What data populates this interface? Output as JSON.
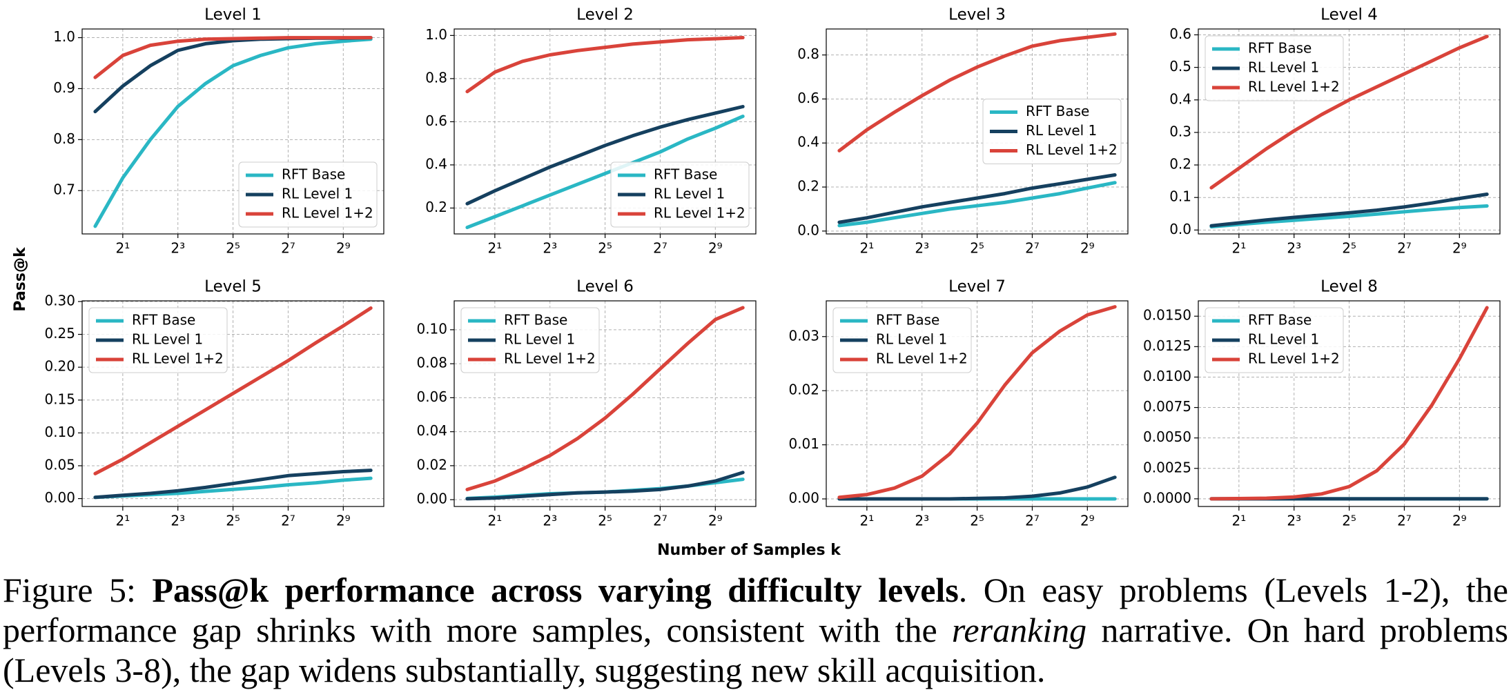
{
  "figure": {
    "ylabel": "Pass@k",
    "xlabel": "Number of Samples k"
  },
  "caption": {
    "label": "Figure 5:",
    "bold": "Pass@k performance across varying difficulty levels",
    "text1": ". On easy problems (Levels 1-2), the performance gap shrinks with more samples, consistent with the ",
    "italic": "reranking",
    "text2": " narrative. On hard problems (Levels 3-8), the gap widens substantially, suggesting new skill acquisition."
  },
  "chart_data": [
    {
      "type": "line",
      "title": "Level 1",
      "x": [
        1,
        2,
        4,
        8,
        16,
        32,
        64,
        128,
        256,
        512,
        1024
      ],
      "xscale": "log2",
      "xlim": [
        0.72,
        1418
      ],
      "xticks": [
        {
          "value": 2,
          "label": "2¹"
        },
        {
          "value": 8,
          "label": "2³"
        },
        {
          "value": 32,
          "label": "2⁵"
        },
        {
          "value": 128,
          "label": "2⁷"
        },
        {
          "value": 512,
          "label": "2⁹"
        }
      ],
      "ylim": [
        0.615,
        1.017
      ],
      "yticks": [
        0.7,
        0.8,
        0.9,
        {
          "value": 1.0,
          "label": "1.0"
        }
      ],
      "grid": true,
      "legend": "lower right",
      "series": [
        {
          "name": "RFT Base",
          "color": "#2ab7c4",
          "values": [
            0.63,
            0.725,
            0.8,
            0.865,
            0.91,
            0.945,
            0.965,
            0.98,
            0.988,
            0.993,
            0.997
          ]
        },
        {
          "name": "RL Level 1",
          "color": "#15405f",
          "values": [
            0.855,
            0.905,
            0.945,
            0.975,
            0.988,
            0.994,
            0.997,
            0.998,
            0.999,
            0.999,
            1.0
          ]
        },
        {
          "name": "RL Level 1+2",
          "color": "#d9433a",
          "values": [
            0.922,
            0.965,
            0.985,
            0.993,
            0.997,
            0.998,
            0.999,
            1.0,
            1.0,
            1.0,
            1.0
          ]
        }
      ]
    },
    {
      "type": "line",
      "title": "Level 2",
      "x": [
        1,
        2,
        4,
        8,
        16,
        32,
        64,
        128,
        256,
        512,
        1024
      ],
      "xscale": "log2",
      "xlim": [
        0.72,
        1418
      ],
      "xticks": [
        {
          "value": 2,
          "label": "2¹"
        },
        {
          "value": 8,
          "label": "2³"
        },
        {
          "value": 32,
          "label": "2⁵"
        },
        {
          "value": 128,
          "label": "2⁷"
        },
        {
          "value": 512,
          "label": "2⁹"
        }
      ],
      "ylim": [
        0.08,
        1.03
      ],
      "yticks": [
        0.2,
        0.4,
        0.6,
        0.8,
        {
          "value": 1.0,
          "label": "1.0"
        }
      ],
      "grid": true,
      "legend": "lower right",
      "series": [
        {
          "name": "RFT Base",
          "color": "#2ab7c4",
          "values": [
            0.11,
            0.16,
            0.21,
            0.26,
            0.31,
            0.36,
            0.41,
            0.46,
            0.52,
            0.57,
            0.625
          ]
        },
        {
          "name": "RL Level 1",
          "color": "#15405f",
          "values": [
            0.22,
            0.28,
            0.335,
            0.39,
            0.44,
            0.49,
            0.535,
            0.575,
            0.61,
            0.64,
            0.67
          ]
        },
        {
          "name": "RL Level 1+2",
          "color": "#d9433a",
          "values": [
            0.74,
            0.83,
            0.88,
            0.91,
            0.93,
            0.945,
            0.96,
            0.97,
            0.98,
            0.985,
            0.99
          ]
        }
      ]
    },
    {
      "type": "line",
      "title": "Level 3",
      "x": [
        1,
        2,
        4,
        8,
        16,
        32,
        64,
        128,
        256,
        512,
        1024
      ],
      "xscale": "log2",
      "xlim": [
        0.72,
        1418
      ],
      "xticks": [
        {
          "value": 2,
          "label": "2¹"
        },
        {
          "value": 8,
          "label": "2³"
        },
        {
          "value": 32,
          "label": "2⁵"
        },
        {
          "value": 128,
          "label": "2⁷"
        },
        {
          "value": 512,
          "label": "2⁹"
        }
      ],
      "ylim": [
        -0.013,
        0.918
      ],
      "yticks": [
        {
          "value": 0,
          "label": "0.0"
        },
        0.2,
        0.4,
        0.6,
        0.8
      ],
      "grid": true,
      "legend": "center right",
      "series": [
        {
          "name": "RFT Base",
          "color": "#2ab7c4",
          "values": [
            0.025,
            0.04,
            0.06,
            0.08,
            0.1,
            0.115,
            0.13,
            0.15,
            0.17,
            0.195,
            0.22
          ]
        },
        {
          "name": "RL Level 1",
          "color": "#15405f",
          "values": [
            0.04,
            0.06,
            0.085,
            0.11,
            0.13,
            0.15,
            0.17,
            0.195,
            0.215,
            0.235,
            0.255
          ]
        },
        {
          "name": "RL Level 1+2",
          "color": "#d9433a",
          "values": [
            0.365,
            0.46,
            0.54,
            0.615,
            0.685,
            0.745,
            0.795,
            0.84,
            0.865,
            0.88,
            0.895
          ]
        }
      ]
    },
    {
      "type": "line",
      "title": "Level 4",
      "x": [
        1,
        2,
        4,
        8,
        16,
        32,
        64,
        128,
        256,
        512,
        1024
      ],
      "xscale": "log2",
      "xlim": [
        0.72,
        1418
      ],
      "xticks": [
        {
          "value": 2,
          "label": "2¹"
        },
        {
          "value": 8,
          "label": "2³"
        },
        {
          "value": 32,
          "label": "2⁵"
        },
        {
          "value": 128,
          "label": "2⁷"
        },
        {
          "value": 512,
          "label": "2⁹"
        }
      ],
      "ylim": [
        -0.012,
        0.618
      ],
      "yticks": [
        {
          "value": 0,
          "label": "0.0"
        },
        0.1,
        0.2,
        0.3,
        0.4,
        0.5,
        0.6
      ],
      "grid": true,
      "legend": "upper left",
      "series": [
        {
          "name": "RFT Base",
          "color": "#2ab7c4",
          "values": [
            0.01,
            0.017,
            0.024,
            0.03,
            0.036,
            0.042,
            0.049,
            0.056,
            0.063,
            0.069,
            0.074
          ]
        },
        {
          "name": "RL Level 1",
          "color": "#15405f",
          "values": [
            0.013,
            0.022,
            0.031,
            0.039,
            0.046,
            0.053,
            0.061,
            0.071,
            0.083,
            0.097,
            0.11
          ]
        },
        {
          "name": "RL Level 1+2",
          "color": "#d9433a",
          "values": [
            0.13,
            0.19,
            0.25,
            0.305,
            0.355,
            0.4,
            0.44,
            0.48,
            0.52,
            0.56,
            0.595
          ]
        }
      ]
    },
    {
      "type": "line",
      "title": "Level 5",
      "x": [
        1,
        2,
        4,
        8,
        16,
        32,
        64,
        128,
        256,
        512,
        1024
      ],
      "xscale": "log2",
      "xlim": [
        0.72,
        1418
      ],
      "xticks": [
        {
          "value": 2,
          "label": "2¹"
        },
        {
          "value": 8,
          "label": "2³"
        },
        {
          "value": 32,
          "label": "2⁵"
        },
        {
          "value": 128,
          "label": "2⁷"
        },
        {
          "value": 512,
          "label": "2⁹"
        }
      ],
      "ylim": [
        -0.012,
        0.301
      ],
      "yticks": [
        {
          "value": 0,
          "label": "0.00"
        },
        0.05,
        {
          "value": 0.1,
          "label": "0.10"
        },
        0.15,
        {
          "value": 0.2,
          "label": "0.20"
        },
        0.25,
        {
          "value": 0.3,
          "label": "0.30"
        }
      ],
      "grid": true,
      "legend": "upper left",
      "series": [
        {
          "name": "RFT Base",
          "color": "#2ab7c4",
          "values": [
            0.002,
            0.004,
            0.006,
            0.008,
            0.011,
            0.014,
            0.017,
            0.021,
            0.024,
            0.028,
            0.031
          ]
        },
        {
          "name": "RL Level 1",
          "color": "#15405f",
          "values": [
            0.002,
            0.005,
            0.008,
            0.012,
            0.017,
            0.023,
            0.029,
            0.035,
            0.038,
            0.041,
            0.043
          ]
        },
        {
          "name": "RL Level 1+2",
          "color": "#d9433a",
          "values": [
            0.038,
            0.06,
            0.085,
            0.11,
            0.135,
            0.16,
            0.185,
            0.21,
            0.237,
            0.263,
            0.29
          ]
        }
      ]
    },
    {
      "type": "line",
      "title": "Level 6",
      "x": [
        1,
        2,
        4,
        8,
        16,
        32,
        64,
        128,
        256,
        512,
        1024
      ],
      "xscale": "log2",
      "xlim": [
        0.72,
        1418
      ],
      "xticks": [
        {
          "value": 2,
          "label": "2¹"
        },
        {
          "value": 8,
          "label": "2³"
        },
        {
          "value": 32,
          "label": "2⁵"
        },
        {
          "value": 128,
          "label": "2⁷"
        },
        {
          "value": 512,
          "label": "2⁹"
        }
      ],
      "ylim": [
        -0.004,
        0.117
      ],
      "yticks": [
        {
          "value": 0,
          "label": "0.00"
        },
        0.02,
        0.04,
        0.06,
        0.08,
        {
          "value": 0.1,
          "label": "0.10"
        }
      ],
      "grid": true,
      "legend": "upper left",
      "series": [
        {
          "name": "RFT Base",
          "color": "#2ab7c4",
          "values": [
            0.0007,
            0.0015,
            0.0025,
            0.0035,
            0.004,
            0.0045,
            0.0055,
            0.0065,
            0.008,
            0.01,
            0.012
          ]
        },
        {
          "name": "RL Level 1",
          "color": "#15405f",
          "values": [
            0.0005,
            0.001,
            0.002,
            0.003,
            0.004,
            0.0045,
            0.005,
            0.006,
            0.008,
            0.011,
            0.016
          ]
        },
        {
          "name": "RL Level 1+2",
          "color": "#d9433a",
          "values": [
            0.006,
            0.011,
            0.018,
            0.026,
            0.036,
            0.048,
            0.062,
            0.077,
            0.092,
            0.106,
            0.113
          ]
        }
      ]
    },
    {
      "type": "line",
      "title": "Level 7",
      "x": [
        1,
        2,
        4,
        8,
        16,
        32,
        64,
        128,
        256,
        512,
        1024
      ],
      "xscale": "log2",
      "xlim": [
        0.72,
        1418
      ],
      "xticks": [
        {
          "value": 2,
          "label": "2¹"
        },
        {
          "value": 8,
          "label": "2³"
        },
        {
          "value": 32,
          "label": "2⁵"
        },
        {
          "value": 128,
          "label": "2⁷"
        },
        {
          "value": 512,
          "label": "2⁹"
        }
      ],
      "ylim": [
        -0.0014,
        0.0366
      ],
      "yticks": [
        {
          "value": 0,
          "label": "0.00"
        },
        0.01,
        0.02,
        0.03
      ],
      "grid": true,
      "legend": "upper left",
      "series": [
        {
          "name": "RFT Base",
          "color": "#2ab7c4",
          "values": [
            0,
            0,
            0,
            0,
            0,
            0,
            0,
            0,
            0,
            0,
            0
          ]
        },
        {
          "name": "RL Level 1",
          "color": "#15405f",
          "values": [
            0,
            0,
            0,
            0,
            0,
            0.0001,
            0.0002,
            0.0005,
            0.0011,
            0.0022,
            0.004
          ]
        },
        {
          "name": "RL Level 1+2",
          "color": "#d9433a",
          "values": [
            0.0003,
            0.0008,
            0.002,
            0.0042,
            0.0083,
            0.014,
            0.021,
            0.027,
            0.031,
            0.034,
            0.0355
          ]
        }
      ]
    },
    {
      "type": "line",
      "title": "Level 8",
      "x": [
        1,
        2,
        4,
        8,
        16,
        32,
        64,
        128,
        256,
        512,
        1024
      ],
      "xscale": "log2",
      "xlim": [
        0.72,
        1418
      ],
      "xticks": [
        {
          "value": 2,
          "label": "2¹"
        },
        {
          "value": 8,
          "label": "2³"
        },
        {
          "value": 32,
          "label": "2⁵"
        },
        {
          "value": 128,
          "label": "2⁷"
        },
        {
          "value": 512,
          "label": "2⁹"
        }
      ],
      "ylim": [
        -0.00063,
        0.01626
      ],
      "yticks": [
        {
          "value": 0,
          "label": "0.0000"
        },
        0.0025,
        {
          "value": 0.005,
          "label": "0.0050"
        },
        0.0075,
        {
          "value": 0.01,
          "label": "0.0100"
        },
        0.0125,
        {
          "value": 0.015,
          "label": "0.0150"
        }
      ],
      "grid": true,
      "legend": "upper left",
      "series": [
        {
          "name": "RFT Base",
          "color": "#2ab7c4",
          "values": [
            0,
            0,
            0,
            0,
            0,
            0,
            0,
            0,
            0,
            0,
            0
          ]
        },
        {
          "name": "RL Level 1",
          "color": "#15405f",
          "values": [
            0,
            0,
            0,
            0,
            0,
            0,
            0,
            0,
            0,
            0,
            0
          ]
        },
        {
          "name": "RL Level 1+2",
          "color": "#d9433a",
          "values": [
            0,
            2e-05,
            5e-05,
            0.00015,
            0.0004,
            0.001,
            0.0023,
            0.0045,
            0.0077,
            0.0115,
            0.0157
          ]
        }
      ]
    }
  ]
}
